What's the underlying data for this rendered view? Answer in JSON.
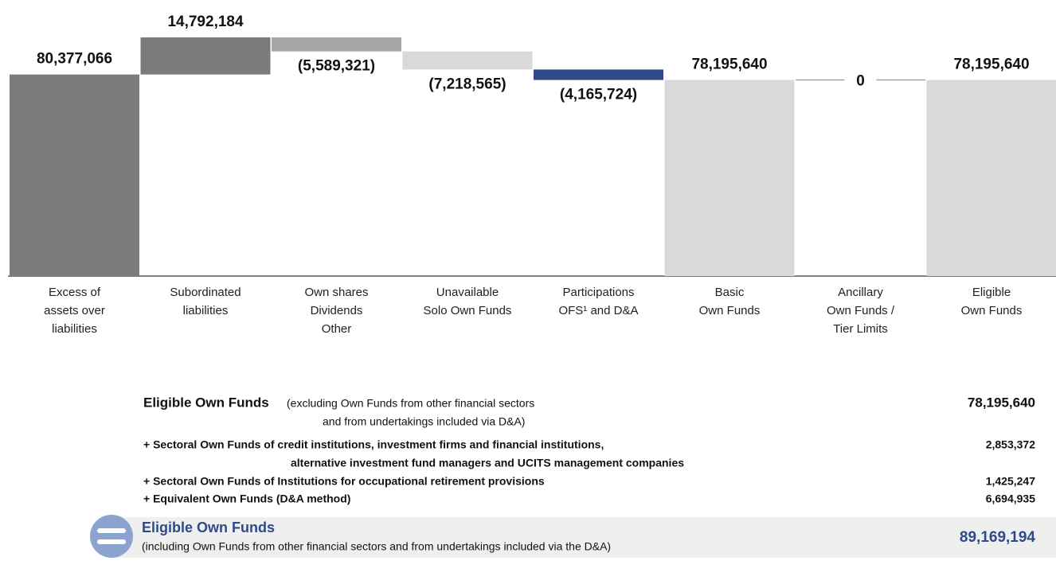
{
  "chart_data": {
    "type": "waterfall",
    "categories": [
      [
        "Excess of",
        "assets over",
        "liabilities"
      ],
      [
        "Subordinated",
        "liabilities"
      ],
      [
        "Own shares",
        "Dividends",
        "Other"
      ],
      [
        "Unavailable",
        "Solo Own Funds"
      ],
      [
        "Participations",
        "OFS¹ and D&A"
      ],
      [
        "Basic",
        "Own Funds"
      ],
      [
        "Ancillary",
        "Own Funds /",
        "Tier Limits"
      ],
      [
        "Eligible",
        "Own Funds"
      ]
    ],
    "values": [
      80377066,
      14792184,
      -5589321,
      -7218565,
      -4165724,
      78195640,
      0,
      78195640
    ],
    "value_labels": [
      "80,377,066",
      "14,792,184",
      "(5,589,321)",
      "(7,218,565)",
      "(4,165,724)",
      "78,195,640",
      "0",
      "78,195,640"
    ],
    "measures": [
      "absolute",
      "relative",
      "relative",
      "relative",
      "relative",
      "total",
      "relative",
      "total"
    ],
    "colors": [
      "#7b7b7b",
      "#7b7b7b",
      "#a6a6a6",
      "#d9d9d9",
      "#2f4b87",
      "#d9d9d9",
      "#8a8a8a",
      "#d9d9d9"
    ]
  },
  "table": {
    "rows": [
      {
        "title": "Eligible Own Funds",
        "text": [
          "(excluding Own Funds from other financial sectors",
          "and from undertakings included via D&A)"
        ],
        "value": "78,195,640"
      },
      {
        "text": [
          "+ Sectoral Own Funds of credit institutions, investment firms and financial institutions,",
          "alternative investment fund managers and UCITS management companies"
        ],
        "value": "2,853,372"
      },
      {
        "text": [
          "+ Sectoral Own Funds of Institutions for occupational retirement provisions"
        ],
        "value": "1,425,247"
      },
      {
        "text": [
          "+ Equivalent Own Funds (D&A method)"
        ],
        "value": "6,694,935"
      }
    ],
    "total": {
      "title": "Eligible Own Funds",
      "text": "(including Own Funds from other financial sectors and from undertakings included via the D&A)",
      "value": "89,169,194"
    }
  }
}
